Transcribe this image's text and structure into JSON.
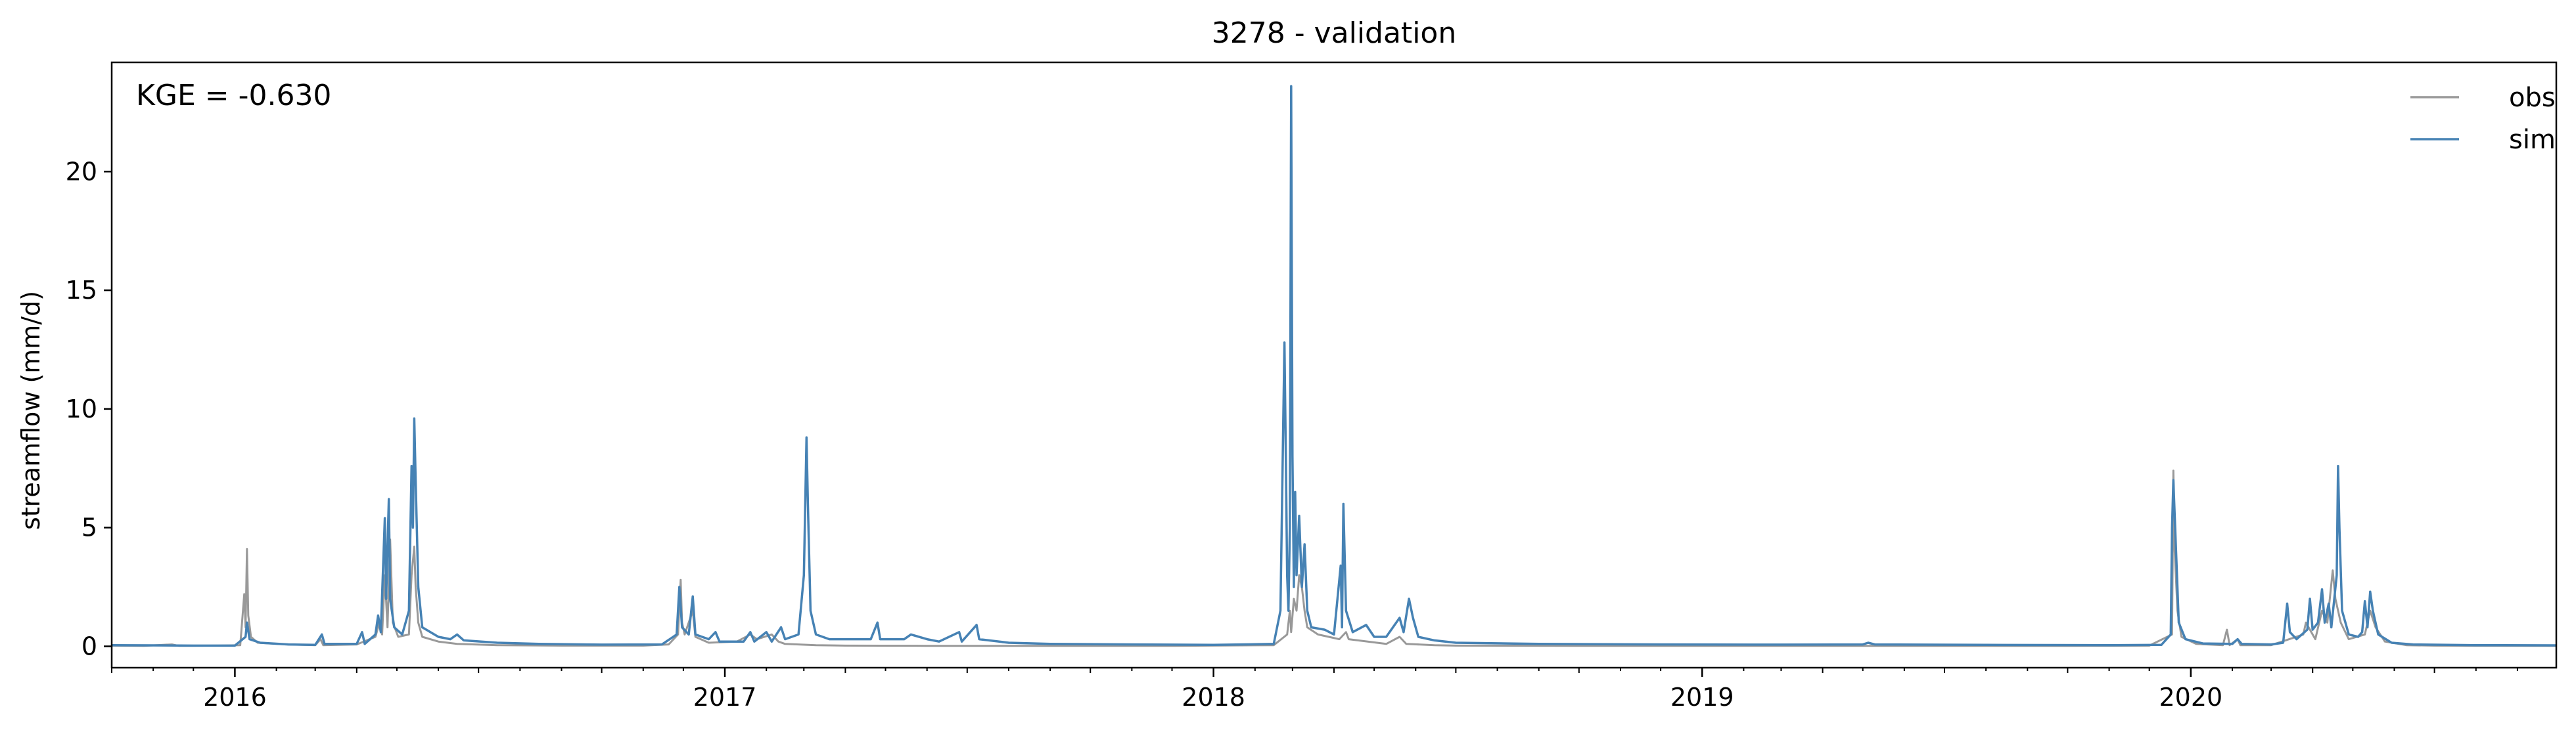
{
  "chart_data": {
    "type": "line",
    "title": "3278 - validation",
    "xlabel": "",
    "ylabel": "streamflow (mm/d)",
    "annotation": "KGE = -0.630",
    "x_axis": {
      "type": "date",
      "range": [
        "2015-10-01",
        "2020-09-30"
      ]
    },
    "xticks": [
      {
        "label": "2016",
        "date": "2016-01-01"
      },
      {
        "label": "2017",
        "date": "2017-01-01"
      },
      {
        "label": "2018",
        "date": "2018-01-01"
      },
      {
        "label": "2019",
        "date": "2019-01-01"
      },
      {
        "label": "2020",
        "date": "2020-01-01"
      }
    ],
    "ylim": [
      -0.9,
      24.6
    ],
    "yticks": [
      0,
      5,
      10,
      15,
      20
    ],
    "grid": false,
    "legend_position": "top-right",
    "series": [
      {
        "name": "obs",
        "color": "#999999",
        "points": [
          [
            "2015-10-01",
            0.03
          ],
          [
            "2015-10-25",
            0.02
          ],
          [
            "2015-11-15",
            0.08
          ],
          [
            "2015-11-20",
            0.02
          ],
          [
            "2015-12-20",
            0.03
          ],
          [
            "2016-01-05",
            0.05
          ],
          [
            "2016-01-08",
            2.2
          ],
          [
            "2016-01-09",
            0.8
          ],
          [
            "2016-01-10",
            4.1
          ],
          [
            "2016-01-11",
            1.3
          ],
          [
            "2016-01-13",
            0.4
          ],
          [
            "2016-01-18",
            0.15
          ],
          [
            "2016-02-10",
            0.08
          ],
          [
            "2016-03-01",
            0.05
          ],
          [
            "2016-03-05",
            0.3
          ],
          [
            "2016-03-07",
            0.05
          ],
          [
            "2016-04-01",
            0.08
          ],
          [
            "2016-04-15",
            0.4
          ],
          [
            "2016-04-18",
            1.0
          ],
          [
            "2016-04-20",
            0.5
          ],
          [
            "2016-04-22",
            3.0
          ],
          [
            "2016-04-24",
            0.8
          ],
          [
            "2016-04-26",
            4.5
          ],
          [
            "2016-04-28",
            1.0
          ],
          [
            "2016-05-02",
            0.4
          ],
          [
            "2016-05-10",
            0.5
          ],
          [
            "2016-05-12",
            3.0
          ],
          [
            "2016-05-14",
            4.2
          ],
          [
            "2016-05-15",
            2.5
          ],
          [
            "2016-05-17",
            1.0
          ],
          [
            "2016-05-20",
            0.4
          ],
          [
            "2016-06-01",
            0.2
          ],
          [
            "2016-06-15",
            0.1
          ],
          [
            "2016-07-15",
            0.05
          ],
          [
            "2016-09-01",
            0.03
          ],
          [
            "2016-11-01",
            0.03
          ],
          [
            "2016-11-20",
            0.08
          ],
          [
            "2016-11-27",
            0.5
          ],
          [
            "2016-11-29",
            2.8
          ],
          [
            "2016-11-30",
            1.0
          ],
          [
            "2016-12-02",
            0.5
          ],
          [
            "2016-12-08",
            1.5
          ],
          [
            "2016-12-10",
            0.4
          ],
          [
            "2016-12-20",
            0.15
          ],
          [
            "2017-01-10",
            0.2
          ],
          [
            "2017-01-20",
            0.5
          ],
          [
            "2017-01-25",
            0.3
          ],
          [
            "2017-02-05",
            0.5
          ],
          [
            "2017-02-10",
            0.2
          ],
          [
            "2017-02-15",
            0.1
          ],
          [
            "2017-03-10",
            0.05
          ],
          [
            "2017-04-01",
            0.03
          ],
          [
            "2017-06-01",
            0.02
          ],
          [
            "2017-09-01",
            0.02
          ],
          [
            "2017-12-01",
            0.02
          ],
          [
            "2018-02-15",
            0.05
          ],
          [
            "2018-02-25",
            0.5
          ],
          [
            "2018-02-27",
            1.5
          ],
          [
            "2018-02-28",
            0.6
          ],
          [
            "2018-03-02",
            2.0
          ],
          [
            "2018-03-04",
            1.5
          ],
          [
            "2018-03-06",
            3.0
          ],
          [
            "2018-03-08",
            2.5
          ],
          [
            "2018-03-10",
            1.5
          ],
          [
            "2018-03-12",
            0.8
          ],
          [
            "2018-03-20",
            0.5
          ],
          [
            "2018-04-05",
            0.3
          ],
          [
            "2018-04-10",
            0.6
          ],
          [
            "2018-04-12",
            0.3
          ],
          [
            "2018-05-10",
            0.1
          ],
          [
            "2018-05-20",
            0.4
          ],
          [
            "2018-05-25",
            0.1
          ],
          [
            "2018-06-15",
            0.05
          ],
          [
            "2018-07-01",
            0.03
          ],
          [
            "2018-10-01",
            0.02
          ],
          [
            "2019-01-01",
            0.02
          ],
          [
            "2019-06-01",
            0.02
          ],
          [
            "2019-10-01",
            0.02
          ],
          [
            "2019-12-01",
            0.03
          ],
          [
            "2019-12-18",
            0.5
          ],
          [
            "2019-12-19",
            7.4
          ],
          [
            "2019-12-20",
            4.0
          ],
          [
            "2019-12-22",
            1.5
          ],
          [
            "2019-12-25",
            0.4
          ],
          [
            "2020-01-05",
            0.1
          ],
          [
            "2020-01-25",
            0.05
          ],
          [
            "2020-01-28",
            0.7
          ],
          [
            "2020-01-30",
            0.05
          ],
          [
            "2020-02-05",
            0.3
          ],
          [
            "2020-02-07",
            0.05
          ],
          [
            "2020-03-01",
            0.05
          ],
          [
            "2020-03-25",
            0.5
          ],
          [
            "2020-03-27",
            1.0
          ],
          [
            "2020-04-03",
            0.3
          ],
          [
            "2020-04-08",
            1.5
          ],
          [
            "2020-04-12",
            1.0
          ],
          [
            "2020-04-16",
            3.2
          ],
          [
            "2020-04-18",
            2.0
          ],
          [
            "2020-04-22",
            1.0
          ],
          [
            "2020-04-28",
            0.3
          ],
          [
            "2020-05-10",
            0.5
          ],
          [
            "2020-05-14",
            1.5
          ],
          [
            "2020-05-18",
            0.8
          ],
          [
            "2020-05-25",
            0.2
          ],
          [
            "2020-06-10",
            0.05
          ],
          [
            "2020-07-01",
            0.03
          ],
          [
            "2020-09-30",
            0.02
          ]
        ]
      },
      {
        "name": "sim",
        "color": "#4682b4",
        "points": [
          [
            "2015-10-01",
            0.05
          ],
          [
            "2015-11-01",
            0.04
          ],
          [
            "2015-12-01",
            0.03
          ],
          [
            "2016-01-01",
            0.03
          ],
          [
            "2016-01-09",
            0.4
          ],
          [
            "2016-01-10",
            1.0
          ],
          [
            "2016-01-12",
            0.3
          ],
          [
            "2016-01-20",
            0.15
          ],
          [
            "2016-02-10",
            0.08
          ],
          [
            "2016-03-01",
            0.06
          ],
          [
            "2016-03-06",
            0.5
          ],
          [
            "2016-03-08",
            0.1
          ],
          [
            "2016-04-01",
            0.1
          ],
          [
            "2016-04-05",
            0.6
          ],
          [
            "2016-04-07",
            0.1
          ],
          [
            "2016-04-15",
            0.5
          ],
          [
            "2016-04-17",
            1.3
          ],
          [
            "2016-04-19",
            0.6
          ],
          [
            "2016-04-22",
            5.4
          ],
          [
            "2016-04-23",
            2.0
          ],
          [
            "2016-04-25",
            6.2
          ],
          [
            "2016-04-26",
            2.0
          ],
          [
            "2016-04-29",
            0.8
          ],
          [
            "2016-05-05",
            0.5
          ],
          [
            "2016-05-10",
            1.5
          ],
          [
            "2016-05-12",
            7.6
          ],
          [
            "2016-05-13",
            5.0
          ],
          [
            "2016-05-14",
            9.6
          ],
          [
            "2016-05-15",
            7.0
          ],
          [
            "2016-05-17",
            2.5
          ],
          [
            "2016-05-20",
            0.8
          ],
          [
            "2016-06-01",
            0.4
          ],
          [
            "2016-06-10",
            0.3
          ],
          [
            "2016-06-15",
            0.5
          ],
          [
            "2016-06-20",
            0.25
          ],
          [
            "2016-07-15",
            0.15
          ],
          [
            "2016-08-15",
            0.1
          ],
          [
            "2016-10-01",
            0.07
          ],
          [
            "2016-11-15",
            0.08
          ],
          [
            "2016-11-26",
            0.5
          ],
          [
            "2016-11-28",
            2.5
          ],
          [
            "2016-11-30",
            0.8
          ],
          [
            "2016-12-05",
            0.5
          ],
          [
            "2016-12-08",
            2.1
          ],
          [
            "2016-12-10",
            0.5
          ],
          [
            "2016-12-20",
            0.3
          ],
          [
            "2016-12-25",
            0.6
          ],
          [
            "2016-12-28",
            0.2
          ],
          [
            "2017-01-15",
            0.2
          ],
          [
            "2017-01-20",
            0.6
          ],
          [
            "2017-01-23",
            0.2
          ],
          [
            "2017-02-01",
            0.6
          ],
          [
            "2017-02-05",
            0.2
          ],
          [
            "2017-02-12",
            0.8
          ],
          [
            "2017-02-15",
            0.3
          ],
          [
            "2017-02-25",
            0.5
          ],
          [
            "2017-03-01",
            3.0
          ],
          [
            "2017-03-03",
            8.8
          ],
          [
            "2017-03-04",
            6.0
          ],
          [
            "2017-03-06",
            1.5
          ],
          [
            "2017-03-10",
            0.5
          ],
          [
            "2017-03-20",
            0.3
          ],
          [
            "2017-04-20",
            0.3
          ],
          [
            "2017-04-25",
            1.0
          ],
          [
            "2017-04-27",
            0.3
          ],
          [
            "2017-05-15",
            0.3
          ],
          [
            "2017-05-20",
            0.5
          ],
          [
            "2017-06-01",
            0.3
          ],
          [
            "2017-06-10",
            0.2
          ],
          [
            "2017-06-25",
            0.6
          ],
          [
            "2017-06-27",
            0.2
          ],
          [
            "2017-07-08",
            0.9
          ],
          [
            "2017-07-10",
            0.3
          ],
          [
            "2017-08-01",
            0.15
          ],
          [
            "2017-09-01",
            0.1
          ],
          [
            "2017-11-01",
            0.08
          ],
          [
            "2018-01-01",
            0.06
          ],
          [
            "2018-02-15",
            0.1
          ],
          [
            "2018-02-20",
            1.5
          ],
          [
            "2018-02-23",
            12.8
          ],
          [
            "2018-02-24",
            8.0
          ],
          [
            "2018-02-25",
            3.0
          ],
          [
            "2018-02-26",
            1.5
          ],
          [
            "2018-02-27",
            5.0
          ],
          [
            "2018-02-28",
            23.6
          ],
          [
            "2018-03-01",
            8.0
          ],
          [
            "2018-03-02",
            2.5
          ],
          [
            "2018-03-03",
            6.5
          ],
          [
            "2018-03-04",
            3.0
          ],
          [
            "2018-03-06",
            5.5
          ],
          [
            "2018-03-08",
            2.5
          ],
          [
            "2018-03-10",
            4.3
          ],
          [
            "2018-03-12",
            1.5
          ],
          [
            "2018-03-15",
            0.8
          ],
          [
            "2018-03-25",
            0.7
          ],
          [
            "2018-04-01",
            0.5
          ],
          [
            "2018-04-06",
            3.4
          ],
          [
            "2018-04-07",
            0.8
          ],
          [
            "2018-04-08",
            6.0
          ],
          [
            "2018-04-10",
            1.5
          ],
          [
            "2018-04-15",
            0.6
          ],
          [
            "2018-04-25",
            0.9
          ],
          [
            "2018-05-01",
            0.4
          ],
          [
            "2018-05-10",
            0.4
          ],
          [
            "2018-05-20",
            1.2
          ],
          [
            "2018-05-23",
            0.6
          ],
          [
            "2018-05-27",
            2.0
          ],
          [
            "2018-05-30",
            1.2
          ],
          [
            "2018-06-03",
            0.4
          ],
          [
            "2018-06-15",
            0.25
          ],
          [
            "2018-07-01",
            0.15
          ],
          [
            "2018-09-01",
            0.1
          ],
          [
            "2018-12-01",
            0.08
          ],
          [
            "2019-03-01",
            0.07
          ],
          [
            "2019-05-01",
            0.08
          ],
          [
            "2019-05-05",
            0.15
          ],
          [
            "2019-05-10",
            0.08
          ],
          [
            "2019-08-01",
            0.06
          ],
          [
            "2019-11-01",
            0.05
          ],
          [
            "2019-12-10",
            0.06
          ],
          [
            "2019-12-17",
            0.5
          ],
          [
            "2019-12-18",
            5.0
          ],
          [
            "2019-12-19",
            7.0
          ],
          [
            "2019-12-21",
            4.0
          ],
          [
            "2019-12-23",
            1.0
          ],
          [
            "2019-12-28",
            0.3
          ],
          [
            "2020-01-10",
            0.12
          ],
          [
            "2020-02-01",
            0.1
          ],
          [
            "2020-02-05",
            0.3
          ],
          [
            "2020-02-08",
            0.1
          ],
          [
            "2020-03-01",
            0.08
          ],
          [
            "2020-03-10",
            0.15
          ],
          [
            "2020-03-13",
            1.8
          ],
          [
            "2020-03-15",
            0.6
          ],
          [
            "2020-03-20",
            0.3
          ],
          [
            "2020-03-28",
            0.7
          ],
          [
            "2020-03-30",
            2.0
          ],
          [
            "2020-04-01",
            0.7
          ],
          [
            "2020-04-05",
            1.0
          ],
          [
            "2020-04-08",
            2.4
          ],
          [
            "2020-04-10",
            1.0
          ],
          [
            "2020-04-13",
            1.8
          ],
          [
            "2020-04-15",
            0.8
          ],
          [
            "2020-04-19",
            3.0
          ],
          [
            "2020-04-20",
            7.6
          ],
          [
            "2020-04-21",
            5.0
          ],
          [
            "2020-04-23",
            1.5
          ],
          [
            "2020-04-28",
            0.5
          ],
          [
            "2020-05-05",
            0.4
          ],
          [
            "2020-05-08",
            0.6
          ],
          [
            "2020-05-10",
            1.9
          ],
          [
            "2020-05-12",
            0.8
          ],
          [
            "2020-05-14",
            2.3
          ],
          [
            "2020-05-16",
            1.5
          ],
          [
            "2020-05-20",
            0.5
          ],
          [
            "2020-05-30",
            0.15
          ],
          [
            "2020-06-15",
            0.08
          ],
          [
            "2020-08-01",
            0.05
          ],
          [
            "2020-09-30",
            0.04
          ]
        ]
      }
    ]
  }
}
